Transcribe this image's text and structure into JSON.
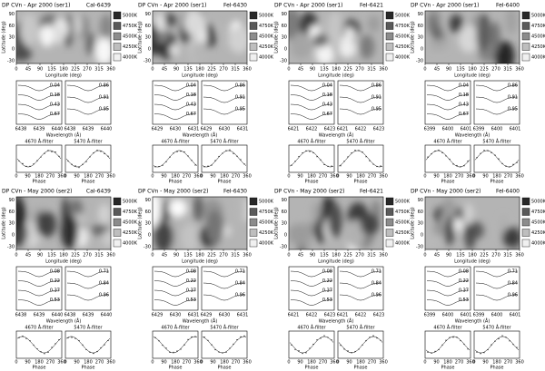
{
  "axis_labels": {
    "latitude": "Latitude (deg)",
    "longitude": "Longitude (deg)",
    "wavelength": "Wavelength (Å)",
    "phase": "Phase"
  },
  "longitude_ticks": [
    "0",
    "45",
    "90",
    "135",
    "180",
    "225",
    "270",
    "315",
    "360"
  ],
  "latitude_ticks": [
    "-30",
    "0",
    "30",
    "60",
    "90"
  ],
  "phase_ticks": [
    "0",
    "90",
    "180",
    "270",
    "360"
  ],
  "filters": [
    "4670 Å-filter",
    "5470 Å-filter"
  ],
  "panels": [
    {
      "title": "DP CVn - Apr 2000 (ser1)",
      "line": "CaI-6439",
      "colorbar": [
        "5000K",
        "4750K",
        "4500K",
        "4250K",
        "4000K"
      ],
      "wavelength_ticks": [
        "6438",
        "6439",
        "6440"
      ],
      "phases": [
        "0.04",
        "0.18",
        "0.43",
        "0.67",
        "0.86",
        "0.91",
        "0.95"
      ]
    },
    {
      "title": "DP CVn - Apr 2000 (ser1)",
      "line": "FeI-6430",
      "colorbar": [
        "5000K",
        "4750K",
        "4500K",
        "4250K",
        "4000K"
      ],
      "wavelength_ticks": [
        "6429",
        "6430",
        "6431"
      ],
      "phases": [
        "0.04",
        "0.18",
        "0.43",
        "0.67",
        "0.86",
        "0.91",
        "0.95"
      ]
    },
    {
      "title": "DP CVn - Apr 2000 (ser1)",
      "line": "FeI-6421",
      "colorbar": [
        "5000K",
        "4750K",
        "4500K",
        "4250K",
        "4000K"
      ],
      "wavelength_ticks": [
        "6421",
        "6422",
        "6423"
      ],
      "phases": [
        "0.04",
        "0.18",
        "0.43",
        "0.67",
        "0.86",
        "0.91",
        "0.95"
      ]
    },
    {
      "title": "DP CVn - Apr 2000 (ser1)",
      "line": "FeI-6400",
      "colorbar": [
        "5000K",
        "4750K",
        "4500K",
        "4250K",
        "4000K"
      ],
      "wavelength_ticks": [
        "6399",
        "6400",
        "6401"
      ],
      "phases": [
        "0.04",
        "0.18",
        "0.43",
        "0.67",
        "0.86",
        "0.91",
        "0.95"
      ]
    },
    {
      "title": "DP CVn - May 2000 (ser2)",
      "line": "CaI-6439",
      "colorbar": [
        "5000K",
        "4750K",
        "4500K",
        "4250K",
        "4000K"
      ],
      "wavelength_ticks": [
        "6438",
        "6439",
        "6440"
      ],
      "phases": [
        "0.08",
        "0.22",
        "0.37",
        "0.53",
        "0.71",
        "0.84",
        "0.96"
      ]
    },
    {
      "title": "DP CVn - May 2000 (ser2)",
      "line": "FeI-6430",
      "colorbar": [
        "5000K",
        "4750K",
        "4500K",
        "4250K",
        "4000K"
      ],
      "wavelength_ticks": [
        "6429",
        "6430",
        "6431"
      ],
      "phases": [
        "0.08",
        "0.22",
        "0.37",
        "0.53",
        "0.71",
        "0.84",
        "0.96"
      ]
    },
    {
      "title": "DP CVn - May 2000 (ser2)",
      "line": "FeI-6421",
      "colorbar": [
        "5000K",
        "4750K",
        "4500K",
        "4250K",
        "4000K"
      ],
      "wavelength_ticks": [
        "6421",
        "6422",
        "6423"
      ],
      "phases": [
        "0.08",
        "0.22",
        "0.37",
        "0.53",
        "0.71",
        "0.84",
        "0.96"
      ]
    },
    {
      "title": "DP CVn - May 2000 (ser2)",
      "line": "FeI-6400",
      "colorbar": [
        "5000K",
        "4750K",
        "4500K",
        "4250K",
        "4000K"
      ],
      "wavelength_ticks": [
        "6399",
        "6400",
        "6401"
      ],
      "phases": [
        "0.08",
        "0.22",
        "0.37",
        "0.53",
        "0.71",
        "0.84",
        "0.96"
      ]
    }
  ]
}
